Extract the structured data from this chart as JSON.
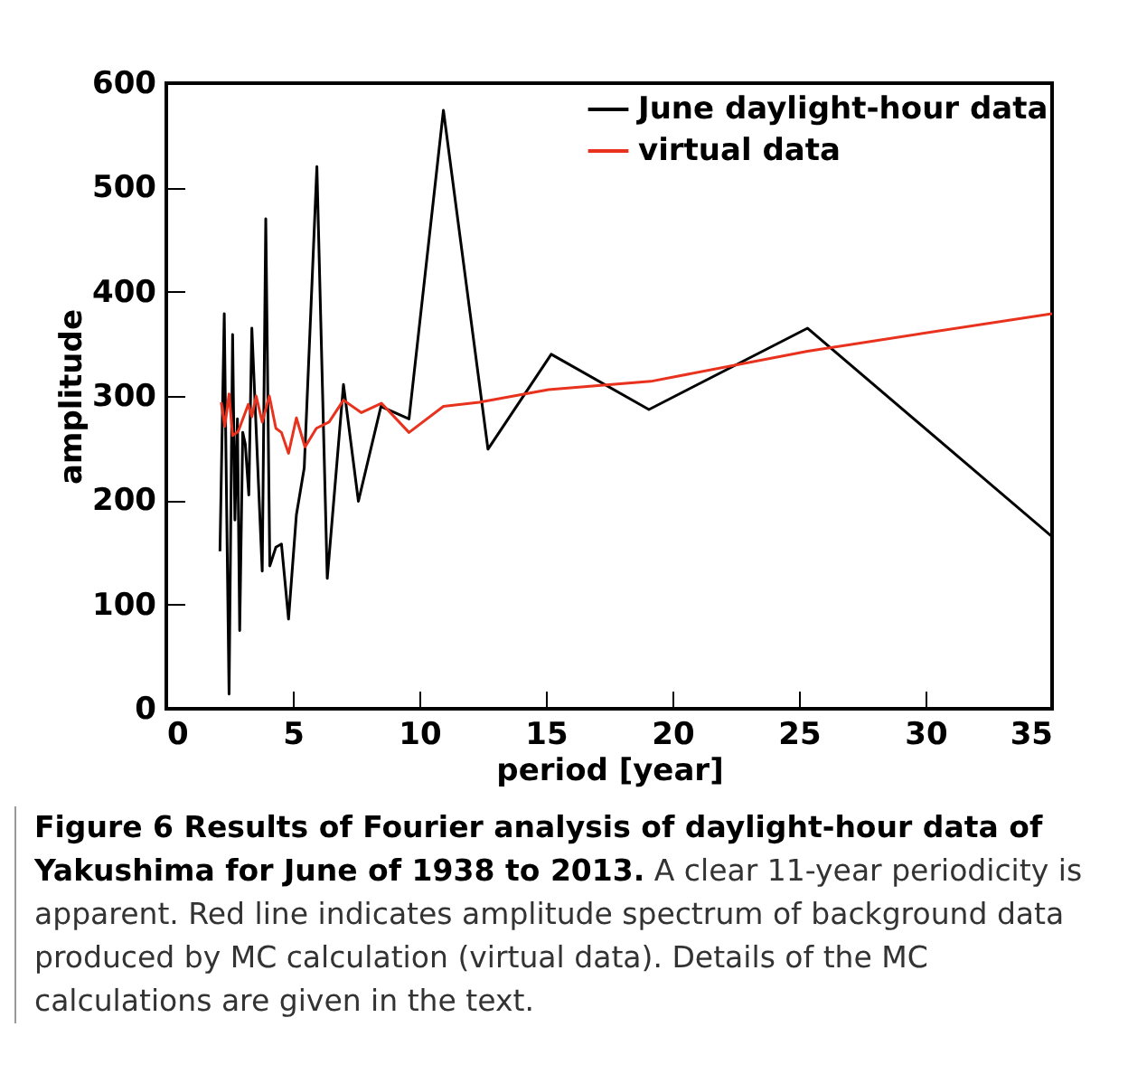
{
  "chart_data": {
    "type": "line",
    "xlabel": "period [year]",
    "ylabel": "amplitude",
    "xlim": [
      0,
      35
    ],
    "xticks": [
      0,
      5,
      10,
      15,
      20,
      25,
      30,
      35
    ],
    "ylim": [
      0,
      600
    ],
    "yticks": [
      0,
      100,
      200,
      300,
      400,
      500,
      600
    ],
    "grid": false,
    "legend": "top right",
    "marker": "none",
    "line_style": "solid",
    "series": [
      {
        "name": "June daylight-hour data",
        "color": "#000000",
        "x": [
          2.12,
          2.29,
          2.36,
          2.48,
          2.62,
          2.71,
          2.81,
          2.9,
          3.02,
          3.12,
          3.26,
          3.38,
          3.79,
          3.93,
          4.09,
          4.33,
          4.55,
          4.83,
          5.14,
          5.45,
          5.95,
          6.36,
          7.0,
          7.59,
          8.48,
          9.59,
          10.95,
          12.71,
          15.21,
          19.07,
          25.34,
          35
        ],
        "values": [
          151,
          379,
          239,
          14,
          359,
          181,
          278,
          75,
          265,
          254,
          205,
          365,
          132,
          470,
          137,
          155,
          158,
          86,
          186,
          231,
          520,
          125,
          311,
          199,
          290,
          278,
          574,
          249,
          340,
          287,
          365,
          165
        ]
      },
      {
        "name": "virtual data",
        "color": "#e8321e",
        "x": [
          2.17,
          2.31,
          2.48,
          2.62,
          2.84,
          3.24,
          3.38,
          3.55,
          3.79,
          4.07,
          4.33,
          4.55,
          4.83,
          5.14,
          5.48,
          5.93,
          6.43,
          7.0,
          7.71,
          8.5,
          9.59,
          10.95,
          12.36,
          15.1,
          19.14,
          25.34,
          35
        ],
        "values": [
          294,
          271,
          302,
          262,
          266,
          292,
          280,
          300,
          275,
          300,
          269,
          265,
          245,
          279,
          251,
          269,
          275,
          296,
          284,
          293,
          265,
          290,
          294,
          306,
          314,
          343,
          379
        ]
      }
    ],
    "annotations": [
      "Figure 6 Results of Fourier analysis of daylight-hour data of Yakushima for June of 1938 to 2013.",
      "A clear 11-year periodicity is apparent. Red line indicates amplitude spectrum of background data produced by MC calculation (virtual data). Details of the MC calculations are given in the text."
    ]
  }
}
